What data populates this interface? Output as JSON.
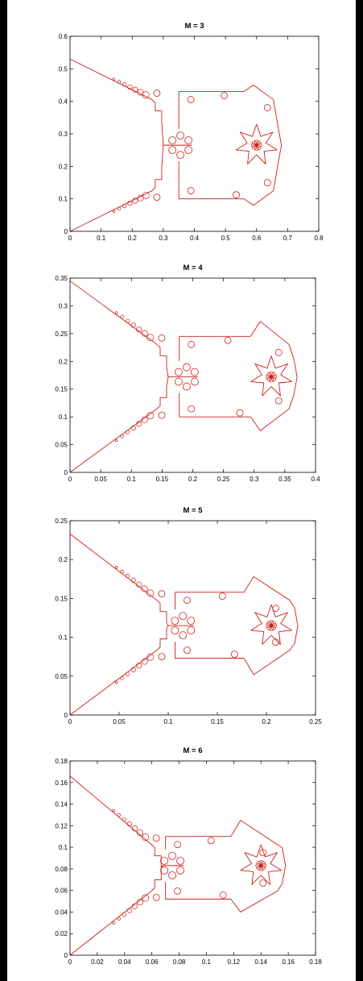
{
  "colors": {
    "curve": "#cc1f1a",
    "axes": "#000000",
    "background": "#ffffff",
    "page_background": "#000000"
  },
  "chart_data": [
    {
      "type": "line",
      "title": "M = 3",
      "xlim": [
        0,
        0.8
      ],
      "ylim": [
        0,
        0.6
      ],
      "xticks": [
        0,
        0.1,
        0.2,
        0.3,
        0.4,
        0.5,
        0.6,
        0.7,
        0.8
      ],
      "yticks": [
        0,
        0.1,
        0.2,
        0.3,
        0.4,
        0.5,
        0.6
      ],
      "xtick_labels": [
        "0",
        "0.1",
        "0.2",
        "0.3",
        "0.4",
        "0.5",
        "0.6",
        "0.7",
        "0.8"
      ],
      "ytick_labels": [
        "0",
        "0.1",
        "0.2",
        "0.3",
        "0.4",
        "0.5",
        "0.6"
      ],
      "grid": false,
      "curve": {
        "apex": [
          0,
          0.53
        ],
        "origin": [
          0,
          0
        ],
        "neck_x": 0.3,
        "neck_y": 0.265,
        "box_left_x": 0.35,
        "box_top_y": 0.43,
        "box_bottom_y": 0.1,
        "peak_top": [
          0.59,
          0.45
        ],
        "peak_bottom": [
          0.59,
          0.08
        ],
        "right_x": 0.68,
        "center": [
          0.6,
          0.265
        ],
        "left_flower": [
          0.355,
          0.265
        ]
      }
    },
    {
      "type": "line",
      "title": "M = 4",
      "xlim": [
        0,
        0.4
      ],
      "ylim": [
        0,
        0.35
      ],
      "xticks": [
        0,
        0.05,
        0.1,
        0.15,
        0.2,
        0.25,
        0.3,
        0.35,
        0.4
      ],
      "yticks": [
        0,
        0.05,
        0.1,
        0.15,
        0.2,
        0.25,
        0.3,
        0.35
      ],
      "xtick_labels": [
        "0",
        "0.05",
        "0.1",
        "0.15",
        "0.2",
        "0.25",
        "0.3",
        "0.35",
        "0.4"
      ],
      "ytick_labels": [
        "0",
        "0.05",
        "0.1",
        "0.15",
        "0.2",
        "0.25",
        "0.3",
        "0.35"
      ],
      "grid": false,
      "curve": {
        "apex": [
          0,
          0.345
        ],
        "origin": [
          0,
          0
        ],
        "neck_x": 0.16,
        "neck_y": 0.172,
        "box_left_x": 0.178,
        "box_top_y": 0.245,
        "box_bottom_y": 0.1,
        "peak_top": [
          0.31,
          0.272
        ],
        "peak_bottom": [
          0.31,
          0.075
        ],
        "right_x": 0.37,
        "center": [
          0.328,
          0.172
        ],
        "left_flower": [
          0.19,
          0.172
        ]
      }
    },
    {
      "type": "line",
      "title": "M = 5",
      "xlim": [
        0,
        0.25
      ],
      "ylim": [
        0,
        0.25
      ],
      "xticks": [
        0,
        0.05,
        0.1,
        0.15,
        0.2,
        0.25
      ],
      "yticks": [
        0,
        0.05,
        0.1,
        0.15,
        0.2,
        0.25
      ],
      "xtick_labels": [
        "0",
        "0.05",
        "0.1",
        "0.15",
        "0.2",
        "0.25"
      ],
      "ytick_labels": [
        "0",
        "0.05",
        "0.1",
        "0.15",
        "0.2",
        "0.25"
      ],
      "grid": false,
      "curve": {
        "apex": [
          0,
          0.233
        ],
        "origin": [
          0,
          0
        ],
        "neck_x": 0.1,
        "neck_y": 0.115,
        "box_left_x": 0.107,
        "box_top_y": 0.158,
        "box_bottom_y": 0.073,
        "peak_top": [
          0.187,
          0.178
        ],
        "peak_bottom": [
          0.187,
          0.052
        ],
        "right_x": 0.232,
        "center": [
          0.205,
          0.115
        ],
        "left_flower": [
          0.115,
          0.115
        ]
      }
    },
    {
      "type": "line",
      "title": "M = 6",
      "xlim": [
        0,
        0.18
      ],
      "ylim": [
        0,
        0.18
      ],
      "xticks": [
        0,
        0.02,
        0.04,
        0.06,
        0.08,
        0.1,
        0.12,
        0.14,
        0.16,
        0.18
      ],
      "yticks": [
        0,
        0.02,
        0.04,
        0.06,
        0.08,
        0.1,
        0.12,
        0.14,
        0.16,
        0.18
      ],
      "xtick_labels": [
        "0",
        "0.02",
        "0.04",
        "0.06",
        "0.08",
        "0.1",
        "0.12",
        "0.14",
        "0.16",
        "0.18"
      ],
      "ytick_labels": [
        "0",
        "0.02",
        "0.04",
        "0.06",
        "0.08",
        "0.1",
        "0.12",
        "0.14",
        "0.16",
        "0.18"
      ],
      "grid": false,
      "curve": {
        "apex": [
          0,
          0.166
        ],
        "origin": [
          0,
          0
        ],
        "neck_x": 0.068,
        "neck_y": 0.083,
        "box_left_x": 0.07,
        "box_top_y": 0.11,
        "box_bottom_y": 0.052,
        "peak_top": [
          0.125,
          0.125
        ],
        "peak_bottom": [
          0.125,
          0.04
        ],
        "right_x": 0.158,
        "center": [
          0.14,
          0.083
        ],
        "left_flower": [
          0.075,
          0.083
        ]
      }
    }
  ]
}
